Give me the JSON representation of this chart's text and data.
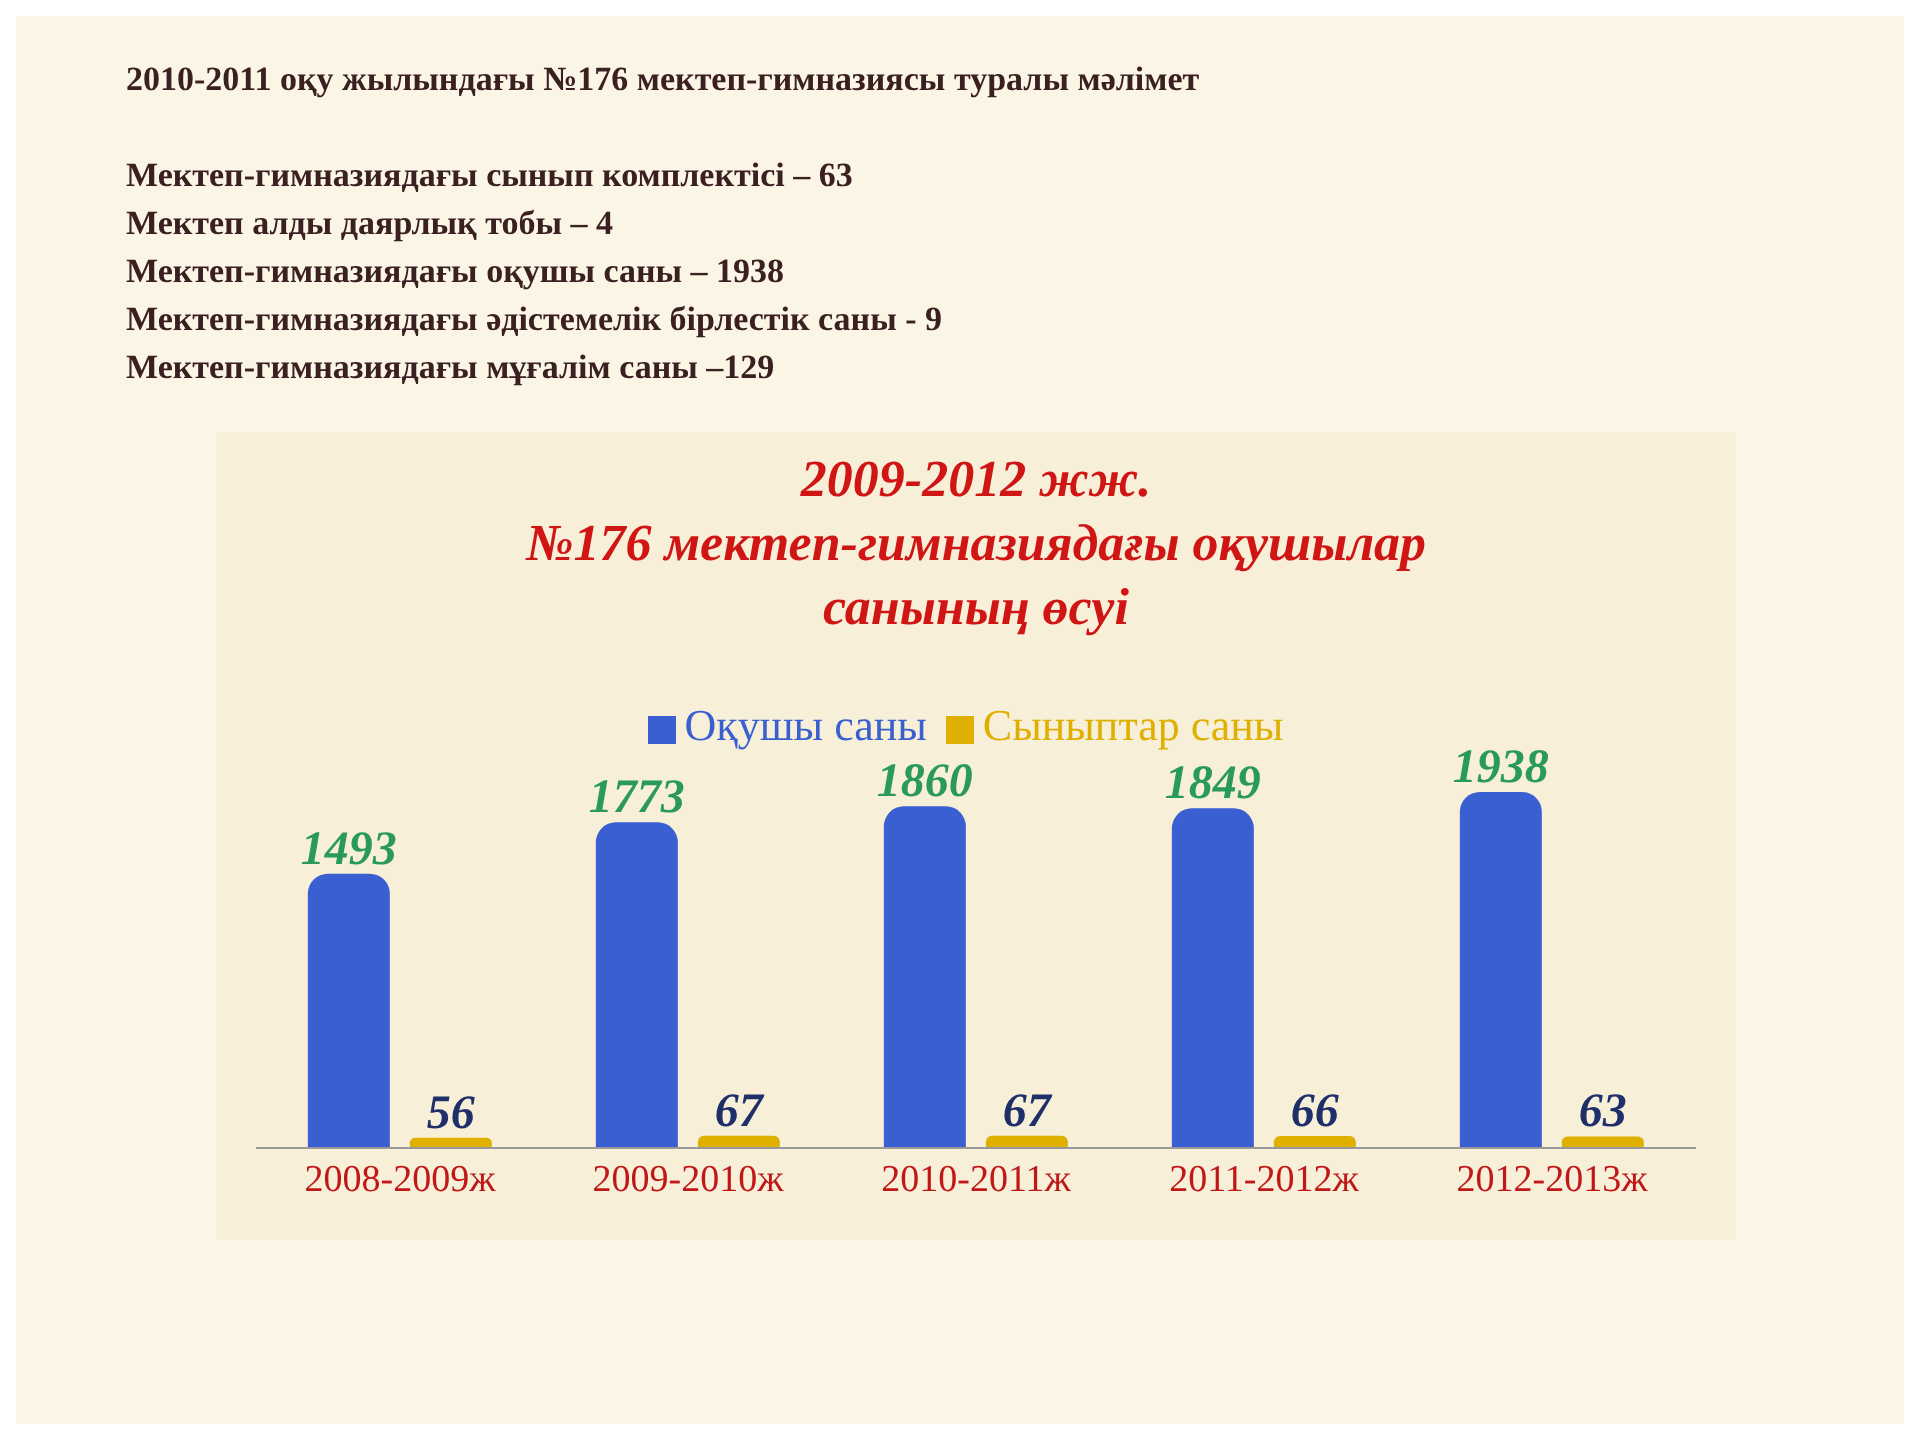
{
  "chart_data": {
    "type": "bar",
    "title": "2009-2012 жж.\n№176 мектеп-гимназиядағы оқушылар\nсанының өсуі",
    "annotations": [
      "2010-2011 оқу жылындағы №176 мектеп-гимназиясы туралы мәлімет",
      "Мектеп-гимназиядағы сынып комплектісі – 63",
      "Мектеп алды даярлық тобы – 4",
      "Мектеп-гимназиядағы оқушы саны – 1938",
      "Мектеп-гимназиядағы әдістемелік бірлестік саны - 9",
      "Мектеп-гимназиядағы мұғалім саны –129"
    ],
    "categories": [
      "2008-2009ж",
      "2009-2010ж",
      "2010-2011ж",
      "2011-2012ж",
      "2012-2013ж"
    ],
    "series": [
      {
        "name": "Оқушы саны",
        "color": "#3a5fd0",
        "values": [
          1493,
          1773,
          1860,
          1849,
          1938
        ]
      },
      {
        "name": "Сыныптар саны",
        "color": "#e0b000",
        "values": [
          56,
          67,
          67,
          66,
          63
        ]
      }
    ],
    "data_labels": true,
    "legend": "top",
    "grid": false
  }
}
